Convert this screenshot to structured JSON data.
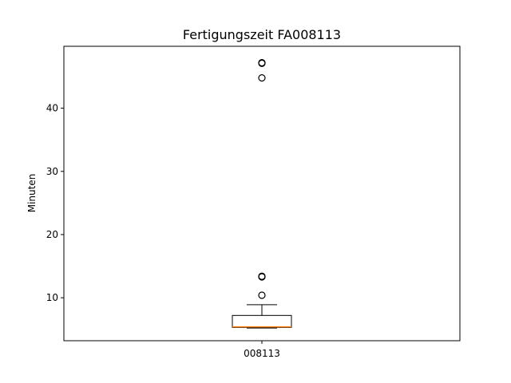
{
  "chart_data": {
    "type": "box",
    "title": "Fertigungszeit FA008113",
    "ylabel": "Minuten",
    "xlabel": "",
    "ylim": [
      3.2,
      49.8
    ],
    "yticks": [
      {
        "value": 10,
        "label": "10"
      },
      {
        "value": 20,
        "label": "20"
      },
      {
        "value": 30,
        "label": "30"
      },
      {
        "value": 40,
        "label": "40"
      }
    ],
    "categories": [
      "008113"
    ],
    "boxes": [
      {
        "category": "008113",
        "whisker_low": 5.2,
        "q1": 5.3,
        "median": 5.4,
        "q3": 7.2,
        "whisker_high": 8.9,
        "outliers": [
          10.4,
          13.3,
          13.4,
          44.8,
          47.1,
          47.2
        ]
      }
    ],
    "grid": false,
    "colors": {
      "box": "#000000",
      "median": "#ff7f0e",
      "background": "#ffffff"
    }
  }
}
